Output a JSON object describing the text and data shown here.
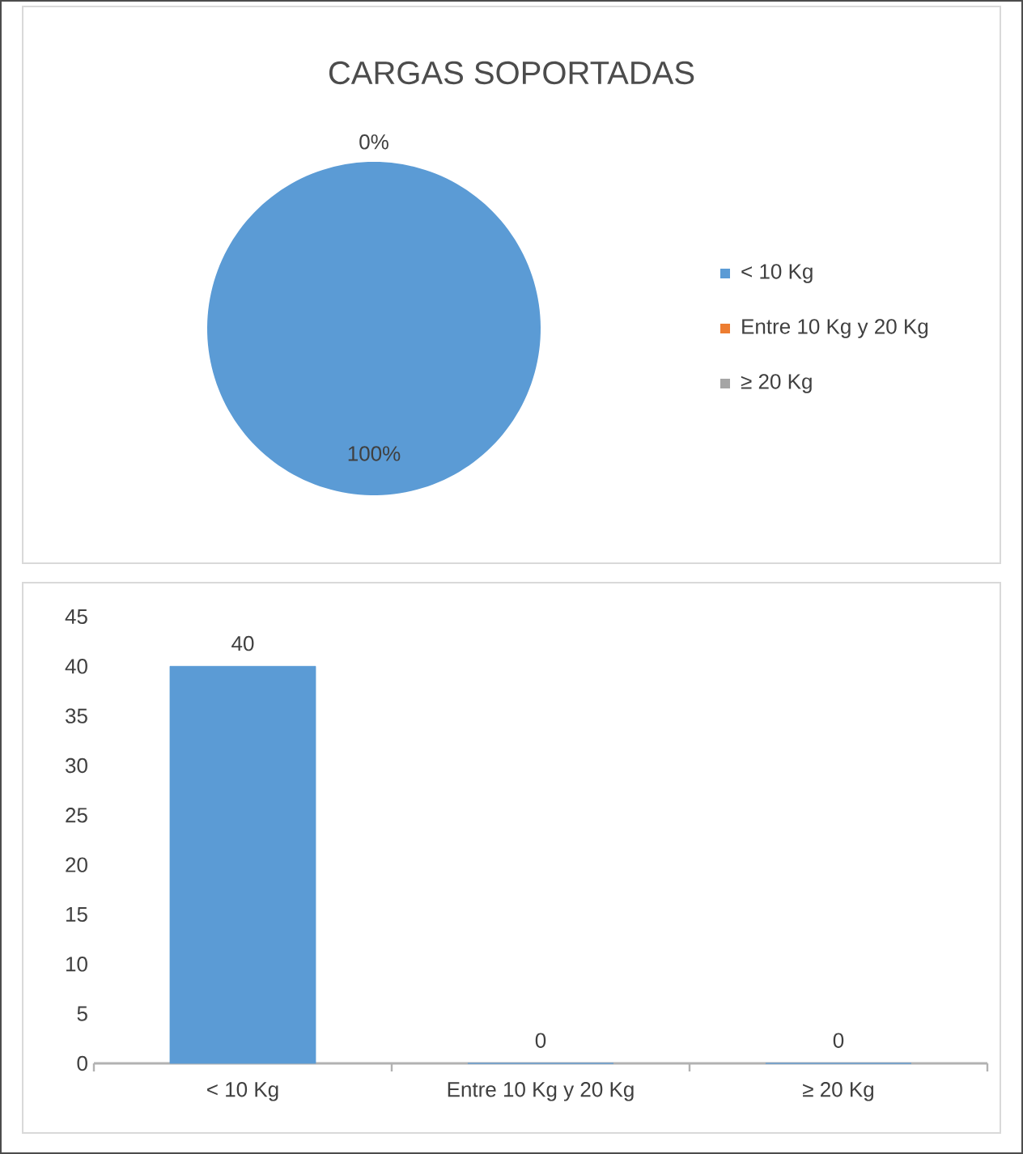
{
  "chart_data": [
    {
      "type": "pie",
      "title": "CARGAS SOPORTADAS",
      "categories": [
        "< 10 Kg",
        "Entre 10 Kg y 20 Kg",
        "≥ 20 Kg"
      ],
      "values": [
        100,
        0,
        0
      ],
      "colors": [
        "#5b9bd5",
        "#ed7d31",
        "#a5a5a5"
      ],
      "value_labels": [
        "100%",
        "0%",
        null
      ],
      "legend": "right"
    },
    {
      "type": "bar",
      "categories": [
        "< 10 Kg",
        "Entre 10 Kg y 20 Kg",
        "≥ 20 Kg"
      ],
      "values": [
        40,
        0,
        0
      ],
      "color": "#5b9bd5",
      "ylim": [
        0,
        45
      ],
      "yticks": [
        0,
        5,
        10,
        15,
        20,
        25,
        30,
        35,
        40,
        45
      ],
      "data_labels": true
    }
  ]
}
